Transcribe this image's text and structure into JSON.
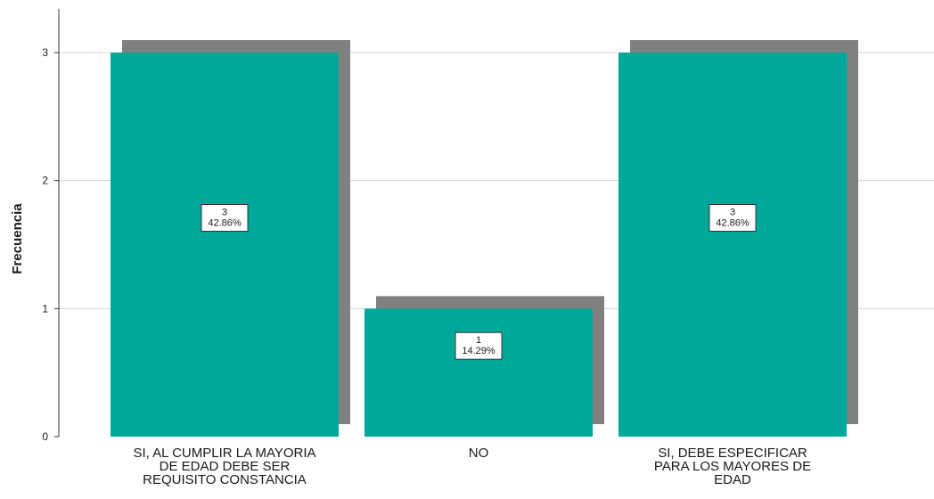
{
  "chart_data": {
    "type": "bar",
    "ylabel": "Frecuencia",
    "xlabel": "",
    "ylim": [
      0,
      3
    ],
    "yticks": [
      "0",
      "1",
      "2",
      "3"
    ],
    "grid": true,
    "style": "3d-shadow",
    "colors": {
      "bar": "#00A89C",
      "shadow": "#808080",
      "grid": "#D3D3D3"
    },
    "categories": [
      [
        "SI, AL CUMPLIR LA MAYORIA",
        "DE EDAD DEBE SER",
        "REQUISITO CONSTANCIA"
      ],
      [
        "NO"
      ],
      [
        "SI,  DEBE ESPECIFICAR",
        "PARA LOS MAYORES DE",
        "EDAD"
      ]
    ],
    "values": [
      3,
      1,
      3
    ],
    "data_labels": [
      [
        "3",
        "42.86%"
      ],
      [
        "1",
        "14.29%"
      ],
      [
        "3",
        "42.86%"
      ]
    ]
  }
}
